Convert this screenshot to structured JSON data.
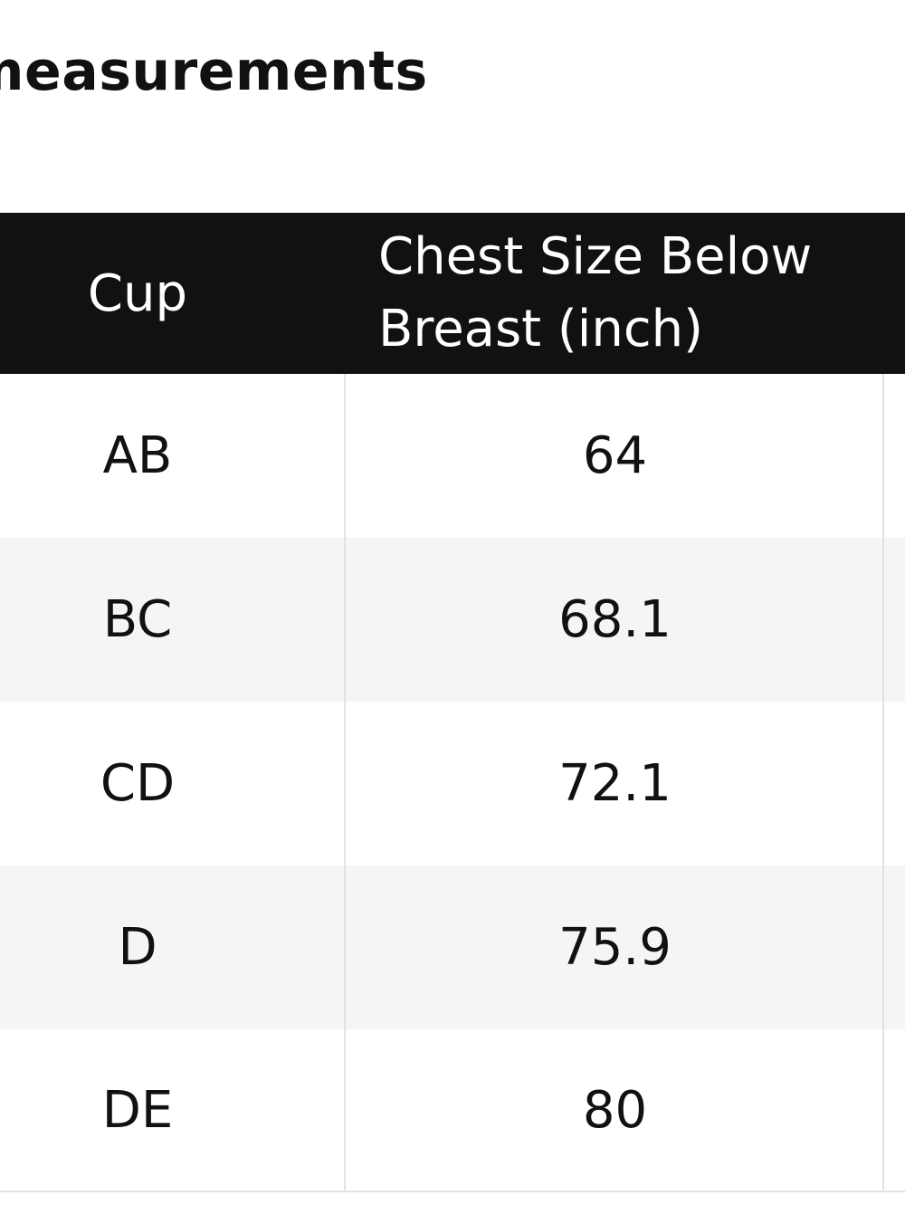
{
  "header": {
    "title": "measurements"
  },
  "table": {
    "columns": [
      "Cup",
      "Chest Size Below Breast (inch)"
    ],
    "rows": [
      [
        "AB",
        64
      ],
      [
        "BC",
        68.1
      ],
      [
        "CD",
        72.1
      ],
      [
        "D",
        75.9
      ],
      [
        "DE",
        80
      ]
    ]
  }
}
